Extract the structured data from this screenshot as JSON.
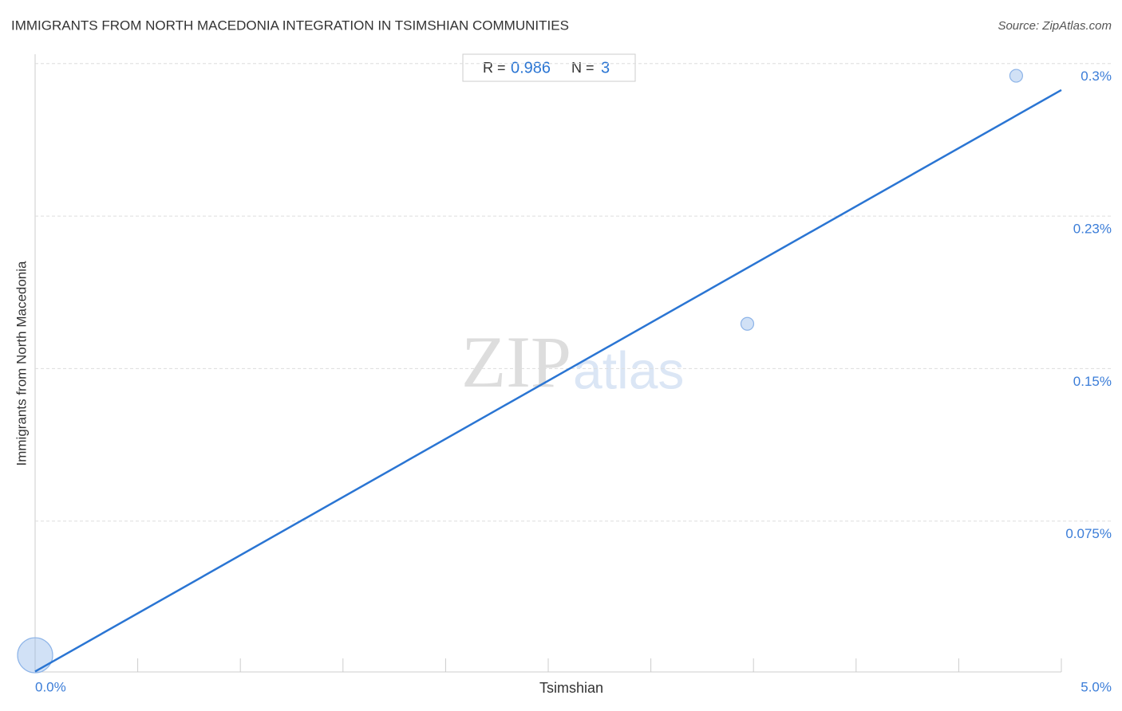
{
  "chart_data": {
    "type": "scatter",
    "title": "IMMIGRANTS FROM NORTH MACEDONIA INTEGRATION IN TSIMSHIAN COMMUNITIES",
    "source": "Source: ZipAtlas.com",
    "x_label": "Tsimshian",
    "y_label": "Immigrants from North Macedonia",
    "watermark": [
      "ZIP",
      "atlas"
    ],
    "stats": {
      "r_label": "R =",
      "r": 0.986,
      "n_label": "N =",
      "n": 3
    },
    "x": [
      0.0,
      3.47,
      4.78
    ],
    "values": [
      0.009,
      0.172,
      0.294
    ],
    "sizes": [
      22,
      8,
      8
    ],
    "color": "#8db4e8",
    "trendline": {
      "x": [
        0,
        5
      ],
      "values": [
        0.001,
        0.287
      ],
      "color": "#2a75d3"
    },
    "xlim": [
      0,
      5
    ],
    "ylim": [
      0,
      0.305
    ],
    "xticks": [
      {
        "value": 0,
        "label": "0.0%"
      },
      {
        "value": 0.5,
        "label": null
      },
      {
        "value": 1,
        "label": null
      },
      {
        "value": 1.5,
        "label": null
      },
      {
        "value": 2,
        "label": null
      },
      {
        "value": 2.5,
        "label": null
      },
      {
        "value": 3,
        "label": null
      },
      {
        "value": 3.5,
        "label": null
      },
      {
        "value": 4,
        "label": null
      },
      {
        "value": 4.5,
        "label": null
      },
      {
        "value": 5,
        "label": "5.0%"
      }
    ],
    "yticks": [
      {
        "value": 0.075,
        "label": "0.075%"
      },
      {
        "value": 0.15,
        "label": "0.15%"
      },
      {
        "value": 0.225,
        "label": "0.23%"
      },
      {
        "value": 0.3,
        "label": "0.3%"
      }
    ],
    "grid": true
  }
}
